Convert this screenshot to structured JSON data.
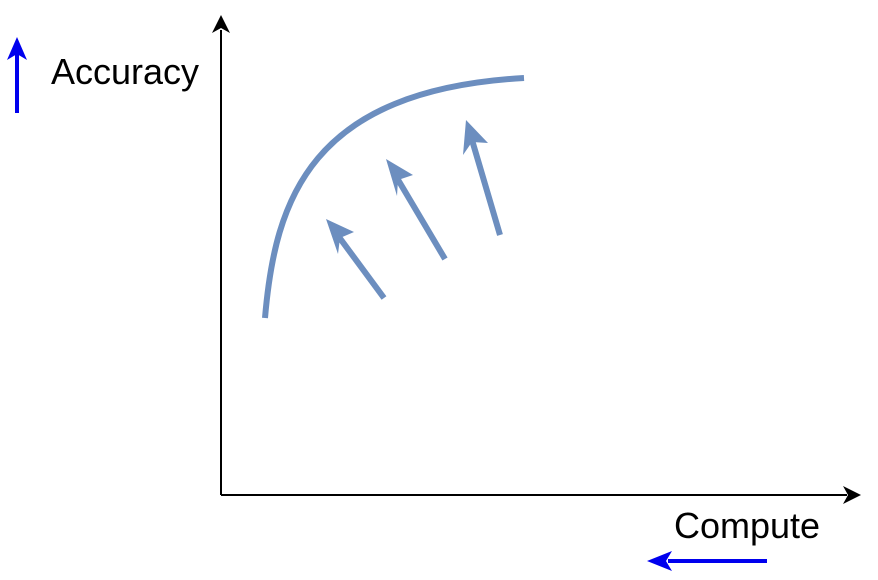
{
  "labels": {
    "y_axis": "Accuracy",
    "x_axis": "Compute"
  },
  "colors": {
    "axis": "#000000",
    "curve": "#6c8ebf",
    "indicator": "#0000ee",
    "text": "#000000"
  },
  "indicators": {
    "accuracy_direction": "up",
    "compute_direction": "left"
  }
}
